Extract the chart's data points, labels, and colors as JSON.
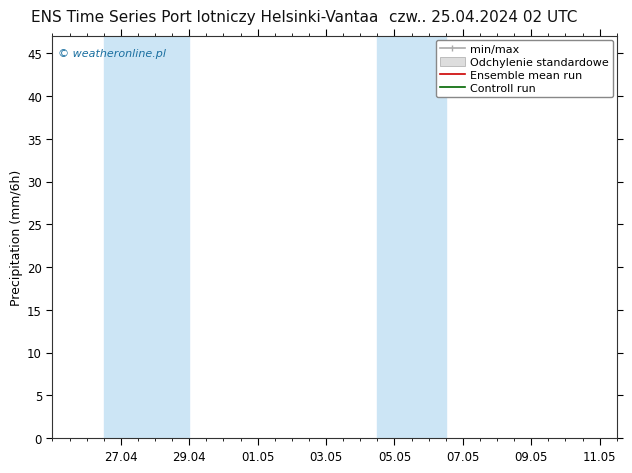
{
  "title_left": "ENS Time Series Port lotniczy Helsinki-Vantaa",
  "title_right": "czw.. 25.04.2024 02 UTC",
  "ylabel": "Precipitation (mm/6h)",
  "ylim": [
    0,
    47
  ],
  "yticks": [
    0,
    5,
    10,
    15,
    20,
    25,
    30,
    35,
    40,
    45
  ],
  "xstart": 0.0,
  "xend": 16.5,
  "xtick_positions": [
    2.0,
    4.0,
    6.0,
    8.0,
    10.0,
    12.0,
    14.0,
    16.0
  ],
  "xtick_labels": [
    "27.04",
    "29.04",
    "01.05",
    "03.05",
    "05.05",
    "07.05",
    "09.05",
    "11.05"
  ],
  "shade_bands": [
    {
      "xmin": 1.5,
      "xmax": 4.0
    },
    {
      "xmin": 9.5,
      "xmax": 11.5
    }
  ],
  "shade_color": "#cce5f5",
  "background_color": "#ffffff",
  "plot_bg_color": "#ffffff",
  "watermark": "© weatheronline.pl",
  "watermark_color": "#1a6fa0",
  "legend_entries": [
    {
      "label": "min/max",
      "color": "#aaaaaa",
      "lw": 1.2
    },
    {
      "label": "Odchylenie standardowe",
      "color": "#cccccc",
      "lw": 6
    },
    {
      "label": "Ensemble mean run",
      "color": "#cc0000",
      "lw": 1.2
    },
    {
      "label": "Controll run",
      "color": "#006600",
      "lw": 1.2
    }
  ],
  "title_fontsize": 11,
  "axis_label_fontsize": 9,
  "tick_fontsize": 8.5,
  "legend_fontsize": 8
}
